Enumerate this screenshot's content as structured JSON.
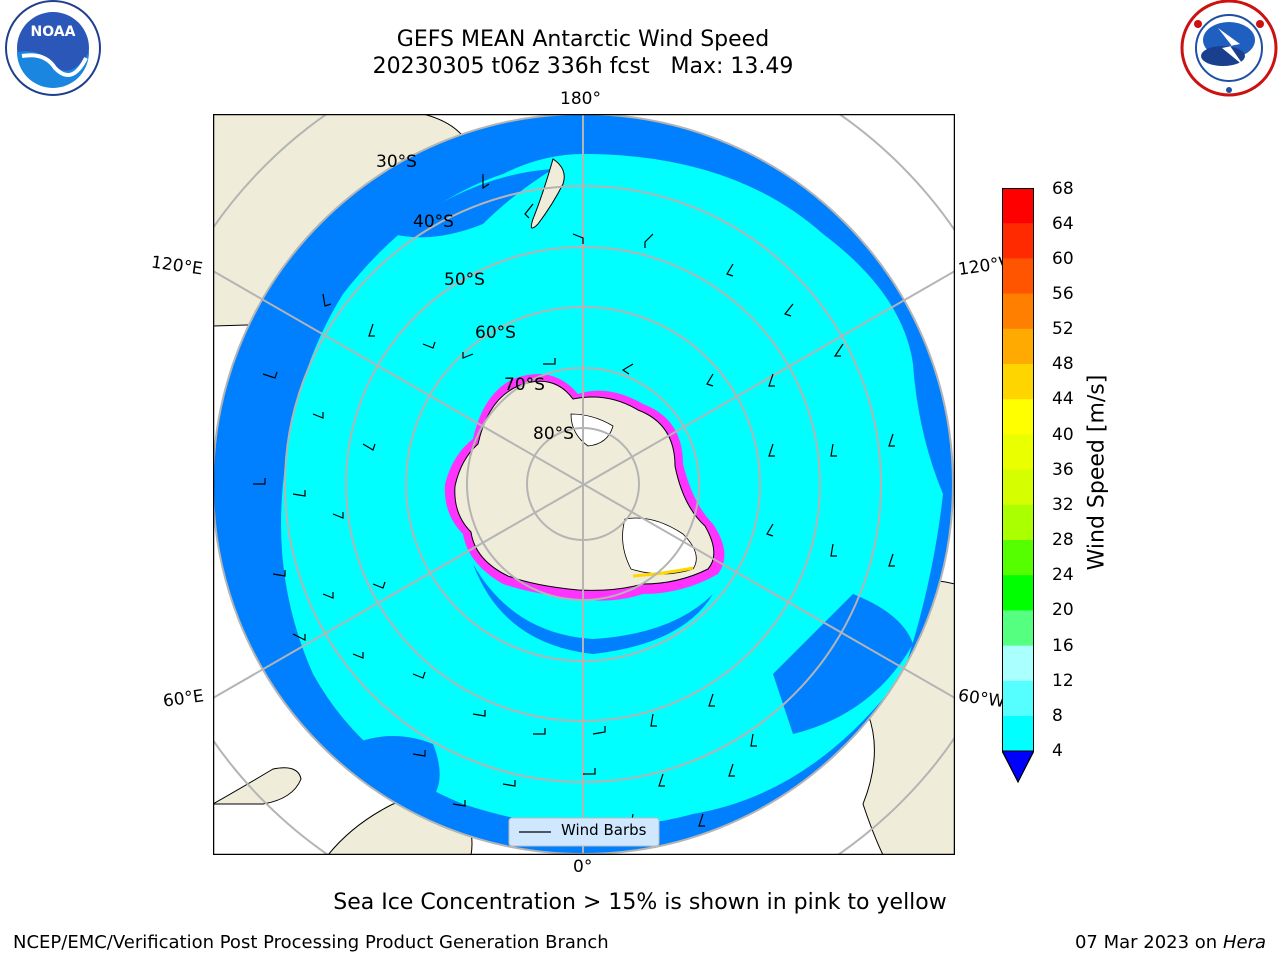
{
  "header": {
    "title_line1": "GEFS MEAN Antarctic Wind Speed",
    "title_line2": "20230305 t06z 336h fcst   Max: 13.49"
  },
  "logos": {
    "left": {
      "name": "NOAA",
      "ring_text": "NATIONAL OCEANIC AND ATMOSPHERIC ADMINISTRATION",
      "bottom_text": "U.S. DEPARTMENT OF COMMERCE"
    },
    "right": {
      "ring_text": "NATIONAL WEATHER SERVICE"
    }
  },
  "map": {
    "projection": "south-polar-stereographic",
    "longitude_labels": [
      "180°",
      "120°E",
      "120°W",
      "60°E",
      "60°W",
      "0°"
    ],
    "latitude_labels": [
      "30°S",
      "40°S",
      "50°S",
      "60°S",
      "70°S",
      "80°S"
    ],
    "legend_label": "Wind Barbs",
    "colors": {
      "ocean_low": "#0080ff",
      "ocean_mid": "#00ffff",
      "ocean_light": "#4dfbff",
      "land": "#efedd9",
      "sea_ice_low": "#ff33ff",
      "sea_ice_high": "#ffd700"
    }
  },
  "colorbar": {
    "label": "Wind Speed [m/s]",
    "ticks": [
      "68",
      "64",
      "60",
      "56",
      "52",
      "48",
      "44",
      "40",
      "36",
      "32",
      "28",
      "24",
      "20",
      "16",
      "12",
      "8",
      "4"
    ],
    "colors": [
      "#ff0000",
      "#ff2a00",
      "#ff5500",
      "#ff8000",
      "#ffaa00",
      "#ffd500",
      "#ffff00",
      "#eaff00",
      "#d5ff00",
      "#aaff00",
      "#55ff00",
      "#00ff00",
      "#55ff80",
      "#aaffff",
      "#55ffff",
      "#00ffff",
      "#0080ff"
    ],
    "extend_color": "#0000ff"
  },
  "caption": "Sea Ice Concentration > 15% is shown in pink to yellow",
  "footer": {
    "left": "NCEP/EMC/Verification Post Processing Product Generation Branch",
    "right_date": "07 Mar 2023 on",
    "right_host": "Hera"
  }
}
